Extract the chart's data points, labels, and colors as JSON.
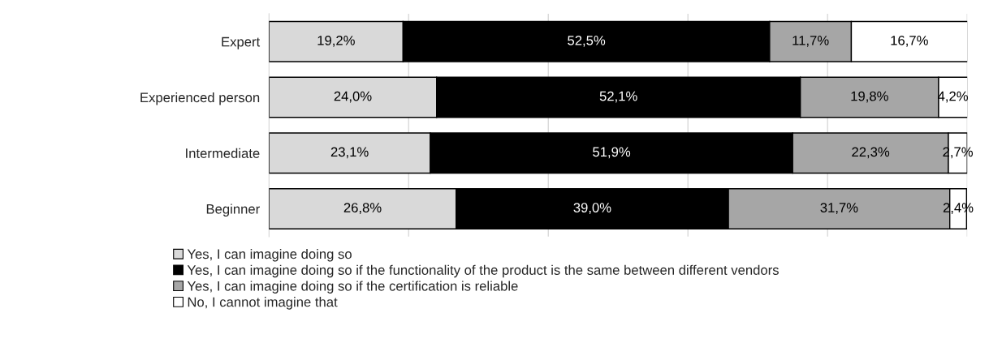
{
  "chart_data": {
    "type": "bar",
    "orientation": "horizontal",
    "stacked": true,
    "categories": [
      "Expert",
      "Experienced person",
      "Intermediate",
      "Beginner"
    ],
    "series": [
      {
        "name": "Yes, I can imagine doing so",
        "color": "#d9d9d9",
        "values": [
          19.2,
          24.0,
          23.1,
          26.8
        ],
        "value_labels": [
          "19,2%",
          "24,0%",
          "23,1%",
          "26,8%"
        ]
      },
      {
        "name": "Yes, I can imagine doing so if the functionality of the product is the same between different vendors",
        "color": "#000000",
        "values": [
          52.5,
          52.1,
          51.9,
          39.0
        ],
        "value_labels": [
          "52,5%",
          "52,1%",
          "51,9%",
          "39,0%"
        ]
      },
      {
        "name": "Yes, I can imagine doing so if the certification is reliable",
        "color": "#a6a6a6",
        "values": [
          11.7,
          19.8,
          22.3,
          31.7
        ],
        "value_labels": [
          "11,7%",
          "19,8%",
          "22,3%",
          "31,7%"
        ]
      },
      {
        "name": "No, I cannot imagine that",
        "color": "#ffffff",
        "values": [
          16.7,
          4.2,
          2.7,
          2.4
        ],
        "value_labels": [
          "16,7%",
          "4,2%",
          "2,7%",
          "2,4%"
        ]
      }
    ],
    "xlim": [
      0,
      100
    ],
    "xticks": [
      {
        "value": 0,
        "label": null
      },
      {
        "value": 20,
        "label": null
      },
      {
        "value": 40,
        "label": null
      },
      {
        "value": 60,
        "label": null
      },
      {
        "value": 80,
        "label": null
      },
      {
        "value": 100,
        "label": null
      }
    ],
    "tick_labels": "y",
    "grid": "x",
    "legend": "bottom"
  }
}
